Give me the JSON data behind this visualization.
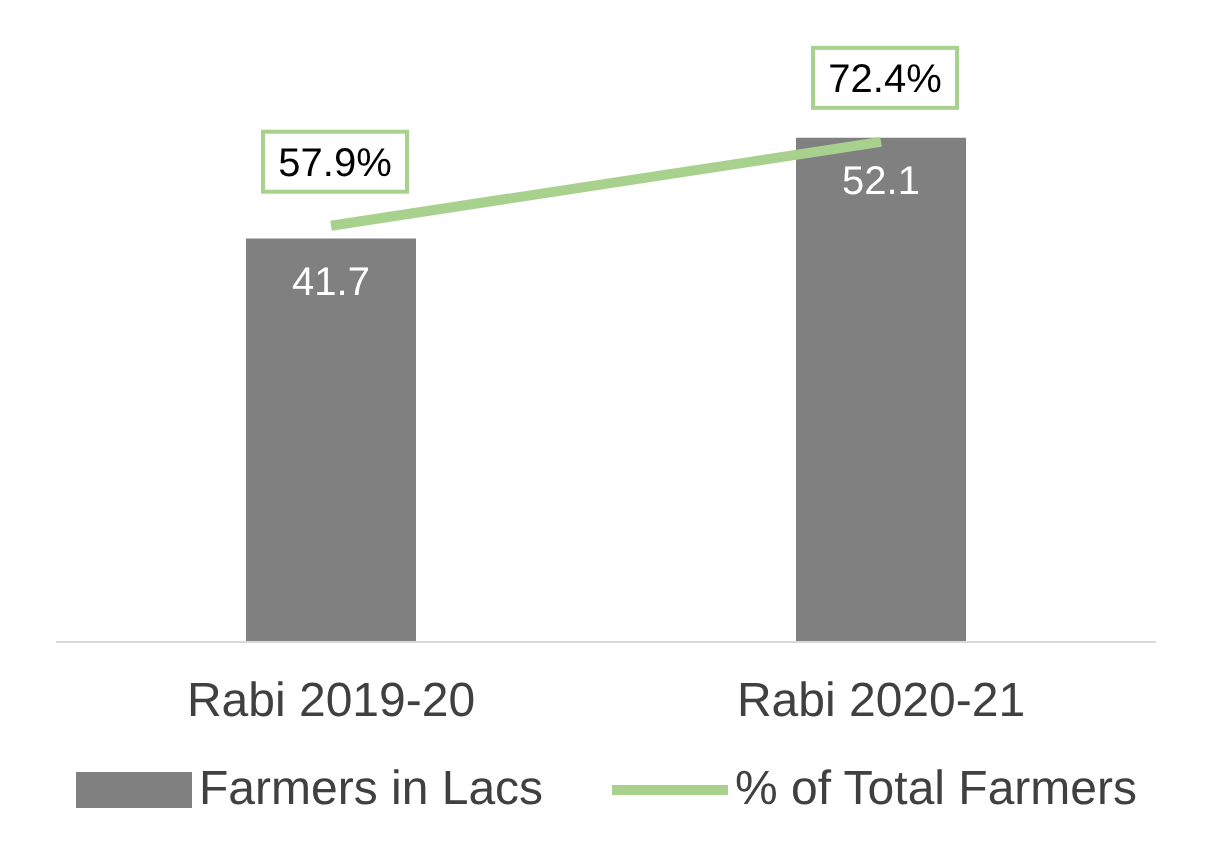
{
  "chart_data": {
    "type": "bar",
    "categories": [
      "Rabi 2019-20",
      "Rabi 2020-21"
    ],
    "series": [
      {
        "name": "Farmers in Lacs",
        "color": "#808080",
        "values": [
          41.7,
          52.1
        ]
      },
      {
        "name": "% of Total Farmers",
        "type": "line",
        "axis": "y2",
        "color": "#a9d18e",
        "values": [
          57.9,
          72.4
        ],
        "value_labels": [
          "57.9%",
          "72.4%"
        ]
      }
    ],
    "tick_labels": "x",
    "data_labels": true,
    "legend": "bottom",
    "marker": "none"
  }
}
